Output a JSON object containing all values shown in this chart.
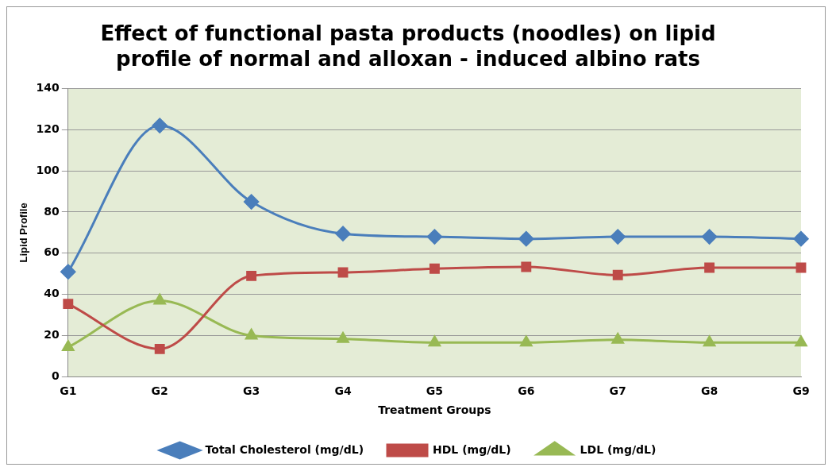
{
  "chart_data": {
    "type": "line",
    "title": "Effect of functional pasta products (noodles) on lipid profile of normal and alloxan - induced albino rats",
    "xlabel": "Treatment Groups",
    "ylabel": "Lipid Profile",
    "categories": [
      "G1",
      "G2",
      "G3",
      "G4",
      "G5",
      "G6",
      "G7",
      "G8",
      "G9"
    ],
    "series": [
      {
        "name": "Total Cholesterol (mg/dL)",
        "color": "#4a7ebb",
        "marker": "diamond",
        "values": [
          51,
          122,
          85,
          69.5,
          68,
          67,
          68,
          68,
          67
        ]
      },
      {
        "name": "HDL (mg/dL)",
        "color": "#be4b48",
        "marker": "square",
        "values": [
          35.4,
          13.5,
          49,
          50.7,
          52.5,
          53.4,
          49.4,
          53,
          53
        ]
      },
      {
        "name": "LDL (mg/dL)",
        "color": "#98b954",
        "marker": "triangle",
        "values": [
          14.4,
          37,
          20,
          18.4,
          16.6,
          16.6,
          18,
          16.6,
          16.6
        ]
      }
    ],
    "ylim": [
      0,
      140
    ],
    "yticks": [
      0,
      20,
      40,
      60,
      80,
      100,
      120,
      140
    ],
    "grid": "y",
    "legend": "bottom",
    "line_style": "solid"
  }
}
